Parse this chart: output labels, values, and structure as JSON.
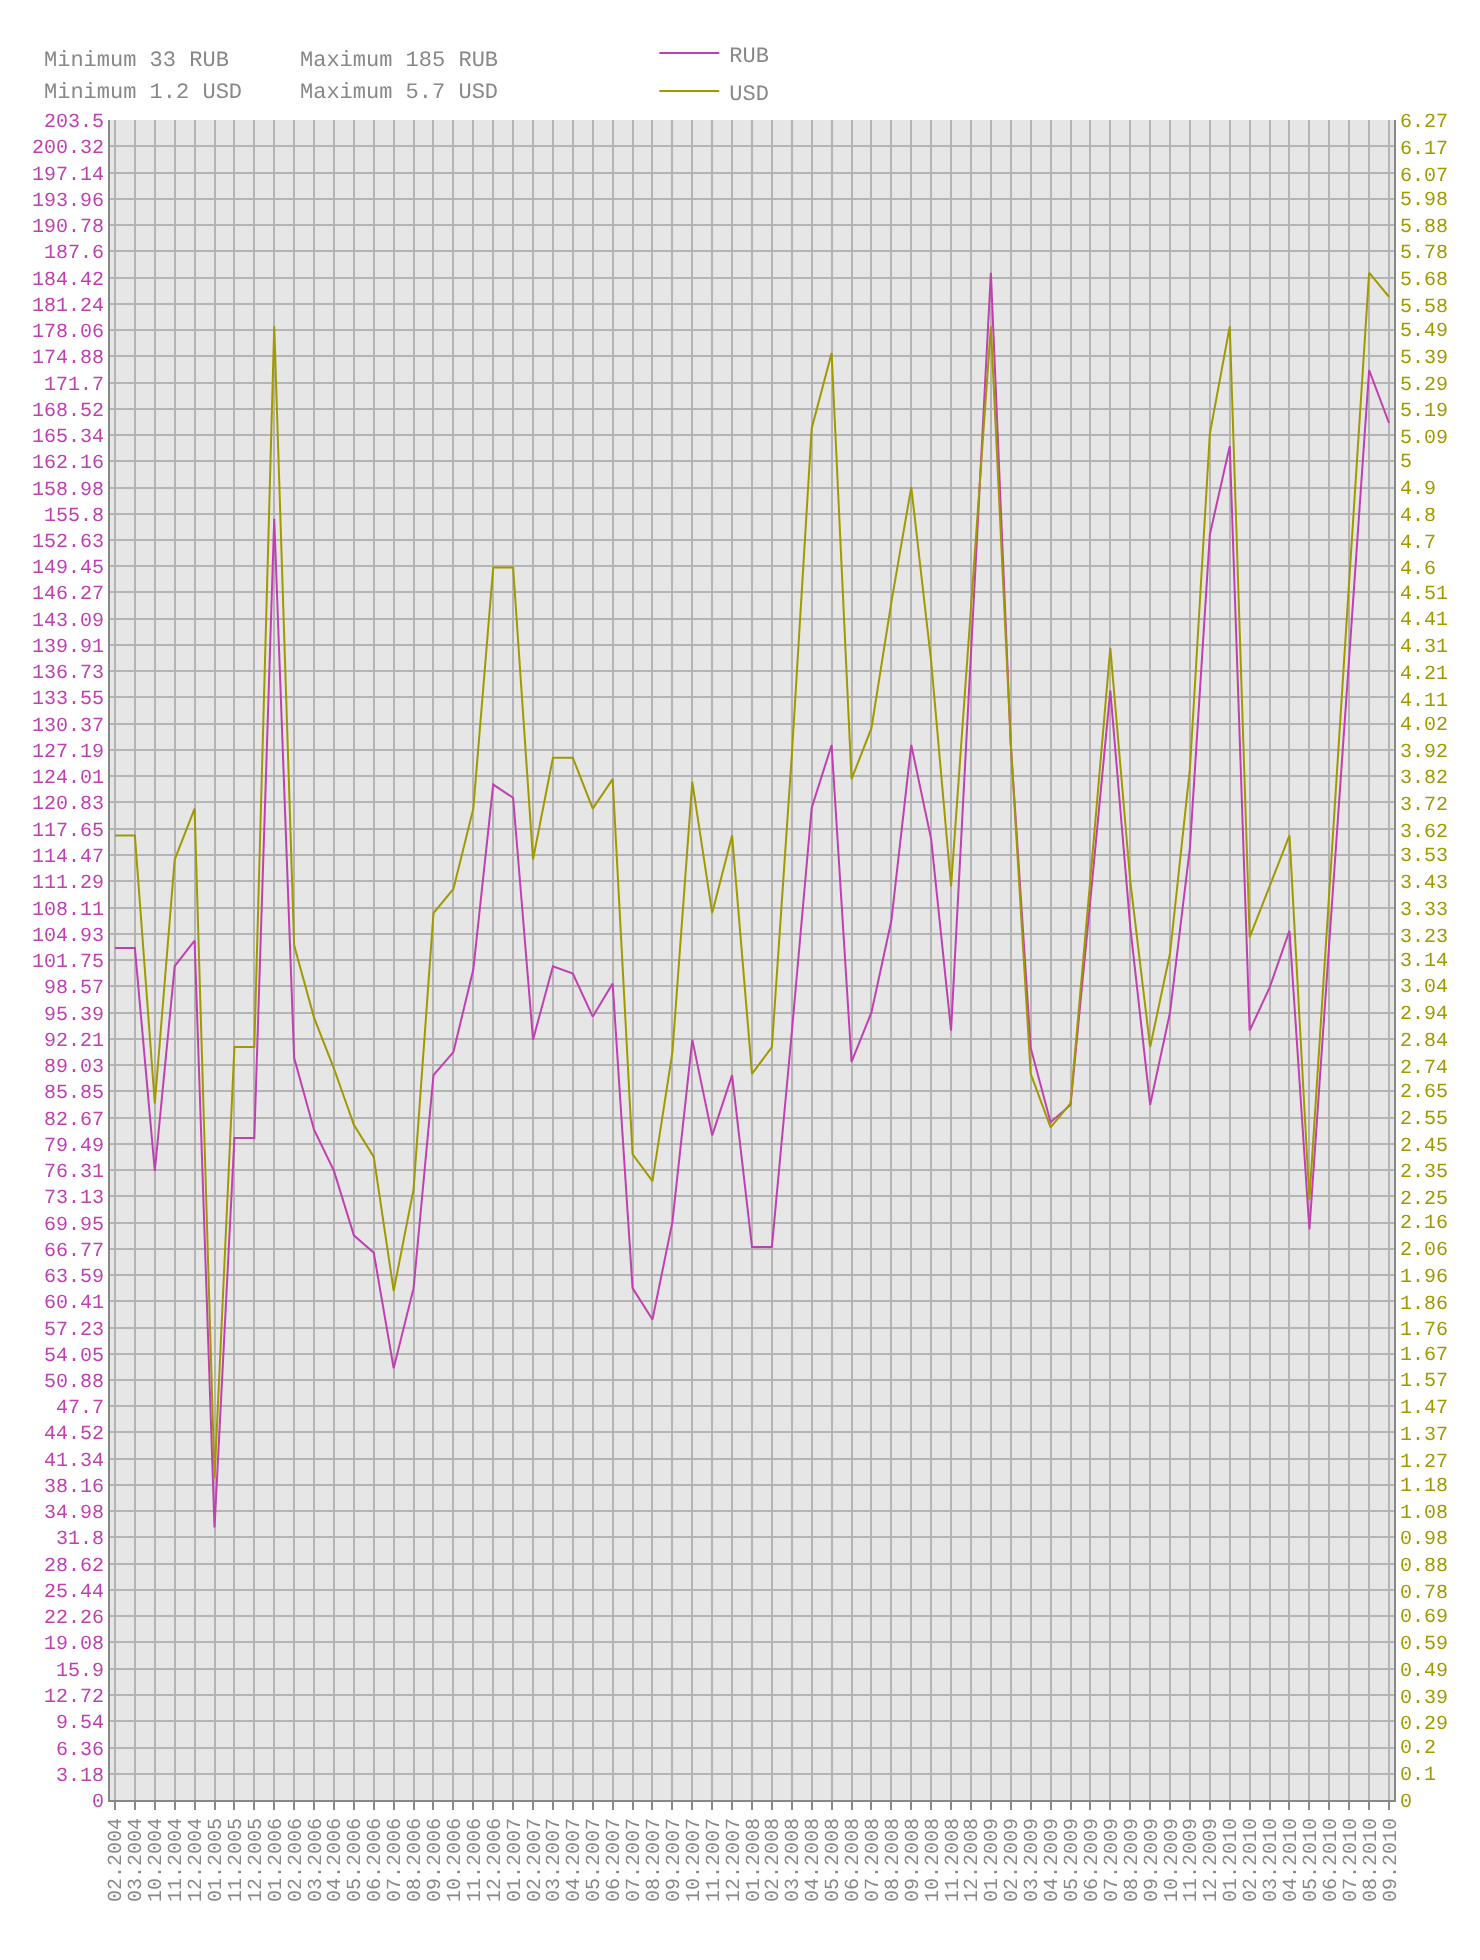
{
  "chart_data": {
    "type": "line",
    "annotations": [
      "Minimum 33 RUB",
      "Minimum 1.2 USD",
      "Maximum 185 RUB",
      "Maximum 5.7 USD"
    ],
    "categories": [
      "02.2004",
      "03.2004",
      "10.2004",
      "11.2004",
      "12.2004",
      "01.2005",
      "11.2005",
      "12.2005",
      "01.2006",
      "02.2006",
      "03.2006",
      "04.2006",
      "05.2006",
      "06.2006",
      "07.2006",
      "08.2006",
      "09.2006",
      "10.2006",
      "11.2006",
      "12.2006",
      "01.2007",
      "02.2007",
      "03.2007",
      "04.2007",
      "05.2007",
      "06.2007",
      "07.2007",
      "08.2007",
      "09.2007",
      "10.2007",
      "11.2007",
      "12.2007",
      "01.2008",
      "02.2008",
      "03.2008",
      "04.2008",
      "05.2008",
      "06.2008",
      "07.2008",
      "08.2008",
      "09.2008",
      "10.2008",
      "11.2008",
      "12.2008",
      "01.2009",
      "02.2009",
      "03.2009",
      "04.2009",
      "05.2009",
      "06.2009",
      "07.2009",
      "08.2009",
      "09.2009",
      "10.2009",
      "11.2009",
      "12.2009",
      "01.2010",
      "02.2010",
      "03.2010",
      "04.2010",
      "05.2010",
      "06.2010",
      "07.2010",
      "08.2010",
      "09.2010"
    ],
    "series": [
      {
        "name": "RUB",
        "color": "#c040b0",
        "values": [
          103.2,
          103.2,
          76.2,
          101.0,
          104.1,
          33,
          80.2,
          80.2,
          155.2,
          89.9,
          81.2,
          76.2,
          68.4,
          66.3,
          52.3,
          62.0,
          87.8,
          90.6,
          100.6,
          123.0,
          121.4,
          92.1,
          101.0,
          100.1,
          94.9,
          98.9,
          62.0,
          58.2,
          70.0,
          92.1,
          80.5,
          87.8,
          67.0,
          67.0,
          93.0,
          120.2,
          127.8,
          89.4,
          95.4,
          106.5,
          127.8,
          116.4,
          93.2,
          138.9,
          185,
          127.8,
          91.1,
          82.1,
          84.2,
          109.1,
          134.4,
          105.8,
          84.2,
          95.4,
          115.4,
          153.3,
          164.0,
          93.2,
          98.4,
          105.3,
          69.1,
          103.9,
          138.4,
          173.2,
          166.8
        ]
      },
      {
        "name": "USD",
        "color": "#a09a00",
        "axis": "y2",
        "values": [
          3.6,
          3.6,
          2.6,
          3.51,
          3.7,
          1.2,
          2.81,
          2.81,
          5.5,
          3.19,
          2.92,
          2.73,
          2.52,
          2.4,
          1.9,
          2.28,
          3.31,
          3.4,
          3.7,
          4.6,
          4.6,
          3.51,
          3.89,
          3.89,
          3.7,
          3.81,
          2.41,
          2.31,
          2.79,
          3.8,
          3.31,
          3.6,
          2.71,
          2.81,
          3.9,
          5.12,
          5.4,
          3.81,
          4.0,
          4.47,
          4.9,
          4.25,
          3.41,
          4.45,
          5.5,
          3.94,
          2.71,
          2.51,
          2.6,
          3.44,
          4.3,
          3.43,
          2.81,
          3.16,
          3.85,
          5.1,
          5.5,
          3.22,
          3.41,
          3.6,
          2.24,
          3.39,
          4.55,
          5.7,
          5.61
        ]
      }
    ],
    "ylim": [
      0,
      203.5
    ],
    "yticks": [
      0,
      3.18,
      6.36,
      9.54,
      12.72,
      15.9,
      19.08,
      22.26,
      25.44,
      28.62,
      31.8,
      34.98,
      38.16,
      41.34,
      44.52,
      47.7,
      50.88,
      54.05,
      57.23,
      60.41,
      63.59,
      66.77,
      69.95,
      73.13,
      76.31,
      79.49,
      82.67,
      85.85,
      89.03,
      92.21,
      95.39,
      98.57,
      101.75,
      104.93,
      108.11,
      111.29,
      114.47,
      117.65,
      120.83,
      124.01,
      127.19,
      130.37,
      133.55,
      136.73,
      139.91,
      143.09,
      146.27,
      149.45,
      152.63,
      155.8,
      158.98,
      162.16,
      165.34,
      168.52,
      171.7,
      174.88,
      178.06,
      181.24,
      184.42,
      187.6,
      190.78,
      193.96,
      197.14,
      200.32,
      203.5
    ],
    "y2lim": [
      0,
      6.27
    ],
    "y2ticks": [
      0,
      0.1,
      0.2,
      0.29,
      0.39,
      0.49,
      0.59,
      0.69,
      0.78,
      0.88,
      0.98,
      1.08,
      1.18,
      1.27,
      1.37,
      1.47,
      1.57,
      1.67,
      1.76,
      1.86,
      1.96,
      2.06,
      2.16,
      2.25,
      2.35,
      2.45,
      2.55,
      2.65,
      2.74,
      2.84,
      2.94,
      3.04,
      3.14,
      3.23,
      3.33,
      3.43,
      3.53,
      3.62,
      3.72,
      3.82,
      3.92,
      4.02,
      4.11,
      4.21,
      4.31,
      4.41,
      4.51,
      4.6,
      4.7,
      4.8,
      4.9,
      5,
      5.09,
      5.19,
      5.29,
      5.39,
      5.49,
      5.58,
      5.68,
      5.78,
      5.88,
      5.98,
      6.07,
      6.17,
      6.27
    ],
    "grid": true,
    "legend": "top",
    "marker": "none",
    "line_style": "solid"
  }
}
